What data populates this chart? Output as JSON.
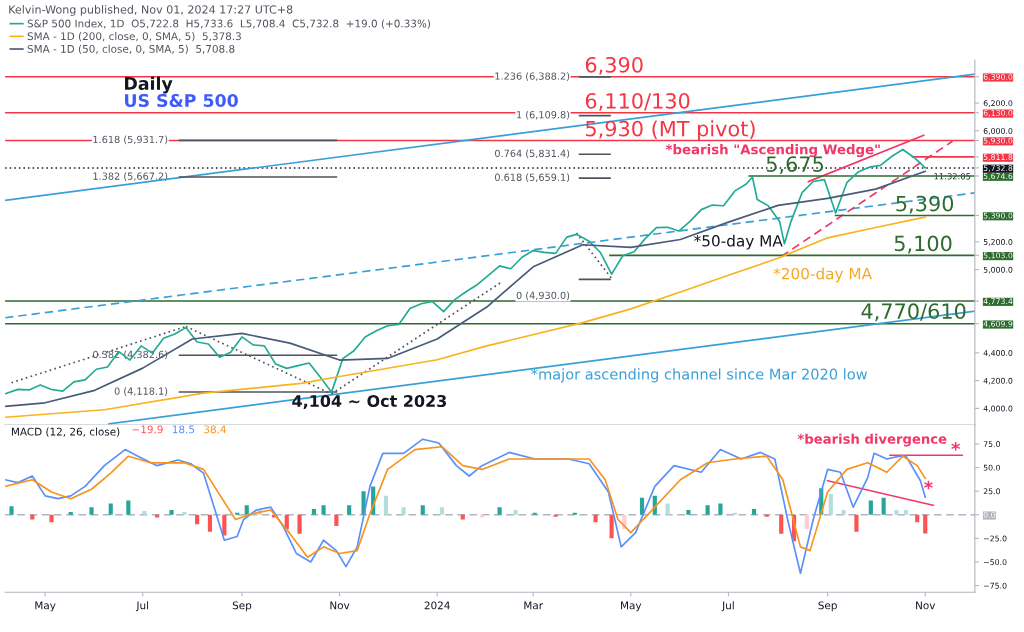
{
  "chart_data": [
    {
      "type": "line",
      "title": "Daily",
      "subtitle": "US S&P 500",
      "xlim": [
        "2023-04-06",
        "2024-12-02"
      ],
      "ylim": [
        3880,
        6510
      ],
      "yticks": [
        {
          "value": 4000,
          "label": "4,000.0"
        },
        {
          "value": 4200,
          "label": "4,200.0"
        },
        {
          "value": 4400,
          "label": "4,400.0"
        },
        {
          "value": 4609.9,
          "label": "4,609.9"
        },
        {
          "value": 4773.4,
          "label": "4,773.4"
        },
        {
          "value": 5000,
          "label": "5,000.0"
        },
        {
          "value": 5103,
          "label": "5,103.0"
        },
        {
          "value": 5200,
          "label": "5,200.0"
        },
        {
          "value": 5390,
          "label": "5,390.0"
        },
        {
          "value": 5674.6,
          "label": "5,674.6"
        },
        {
          "value": 5732.8,
          "label": "5,732.8"
        },
        {
          "value": 5811.8,
          "label": "5,811.8"
        },
        {
          "value": 5930,
          "label": "5,930.0"
        },
        {
          "value": 6000,
          "label": "6,000.0"
        },
        {
          "value": 6130,
          "label": "6,130.0"
        },
        {
          "value": 6200,
          "label": "6,200.0"
        },
        {
          "value": 6390,
          "label": "6,390.0"
        }
      ],
      "tick_labels": "y",
      "grid": false,
      "legend": "top left",
      "series": [
        {
          "name": "S&P 500 Index, 1D  O5,722.8  H5,733.6  L5,708.4  C5,732.8  +19.0 (+0.33%)",
          "color": "#22ab94",
          "x": [
            "2023-04-06",
            "2023-04-14",
            "2023-04-21",
            "2023-04-28",
            "2023-05-05",
            "2023-05-12",
            "2023-05-19",
            "2023-05-26",
            "2023-06-02",
            "2023-06-09",
            "2023-06-16",
            "2023-06-23",
            "2023-06-30",
            "2023-07-07",
            "2023-07-14",
            "2023-07-21",
            "2023-07-28",
            "2023-08-04",
            "2023-08-11",
            "2023-08-18",
            "2023-08-25",
            "2023-09-01",
            "2023-09-08",
            "2023-09-15",
            "2023-09-22",
            "2023-09-29",
            "2023-10-06",
            "2023-10-13",
            "2023-10-20",
            "2023-10-27",
            "2023-11-03",
            "2023-11-10",
            "2023-11-17",
            "2023-11-24",
            "2023-12-01",
            "2023-12-08",
            "2023-12-15",
            "2023-12-22",
            "2023-12-29",
            "2024-01-05",
            "2024-01-12",
            "2024-01-19",
            "2024-01-26",
            "2024-02-02",
            "2024-02-09",
            "2024-02-16",
            "2024-02-23",
            "2024-03-01",
            "2024-03-08",
            "2024-03-15",
            "2024-03-22",
            "2024-03-28",
            "2024-04-05",
            "2024-04-12",
            "2024-04-19",
            "2024-04-26",
            "2024-05-03",
            "2024-05-10",
            "2024-05-17",
            "2024-05-24",
            "2024-05-31",
            "2024-06-07",
            "2024-06-14",
            "2024-06-21",
            "2024-06-28",
            "2024-07-05",
            "2024-07-12",
            "2024-07-16",
            "2024-07-19",
            "2024-07-26",
            "2024-08-02",
            "2024-08-05",
            "2024-08-09",
            "2024-08-16",
            "2024-08-23",
            "2024-08-30",
            "2024-09-06",
            "2024-09-13",
            "2024-09-20",
            "2024-09-27",
            "2024-10-04",
            "2024-10-11",
            "2024-10-18",
            "2024-10-25",
            "2024-11-01"
          ],
          "values": [
            4105,
            4137,
            4133,
            4169,
            4136,
            4124,
            4191,
            4205,
            4282,
            4298,
            4409,
            4348,
            4450,
            4398,
            4505,
            4536,
            4582,
            4478,
            4464,
            4369,
            4405,
            4515,
            4457,
            4450,
            4320,
            4288,
            4308,
            4327,
            4224,
            4117,
            4358,
            4415,
            4514,
            4559,
            4595,
            4604,
            4719,
            4754,
            4770,
            4697,
            4784,
            4840,
            4891,
            4959,
            5027,
            5006,
            5089,
            5137,
            5124,
            5117,
            5234,
            5254,
            5204,
            5123,
            4967,
            5100,
            5128,
            5223,
            5303,
            5305,
            5278,
            5347,
            5432,
            5465,
            5460,
            5567,
            5615,
            5667,
            5505,
            5459,
            5346,
            5186,
            5344,
            5554,
            5635,
            5648,
            5408,
            5626,
            5703,
            5738,
            5751,
            5815,
            5865,
            5808,
            5732.8
          ]
        },
        {
          "name": "SMA - 1D (200, close, 0, SMA, 5)  5,378.3",
          "color": "#f9b31d",
          "x": [
            "2023-04-06",
            "2023-06-07",
            "2023-08-08",
            "2023-10-08",
            "2023-11-01",
            "2024-01-01",
            "2024-02-01",
            "2024-04-01",
            "2024-05-01",
            "2024-06-01",
            "2024-07-01",
            "2024-08-01",
            "2024-09-01",
            "2024-10-01",
            "2024-11-01"
          ],
          "values": [
            3936,
            3990,
            4110,
            4180,
            4230,
            4350,
            4450,
            4618,
            4717,
            4838,
            4959,
            5082,
            5229,
            5303,
            5378.3
          ]
        },
        {
          "name": "SMA - 1D (50, close, 0, SMA, 5)  5,708.8",
          "color": "#4a5a7a",
          "x": [
            "2023-04-06",
            "2023-05-01",
            "2023-06-01",
            "2023-07-01",
            "2023-08-01",
            "2023-09-01",
            "2023-10-01",
            "2023-11-01",
            "2023-12-01",
            "2024-01-01",
            "2024-02-01",
            "2024-03-01",
            "2024-04-01",
            "2024-05-01",
            "2024-06-01",
            "2024-07-01",
            "2024-08-01",
            "2024-09-01",
            "2024-10-01",
            "2024-11-01"
          ],
          "values": [
            4014,
            4040,
            4130,
            4290,
            4500,
            4540,
            4470,
            4348,
            4360,
            4500,
            4730,
            5020,
            5179,
            5160,
            5217,
            5342,
            5463,
            5513,
            5580,
            5708.8
          ]
        },
        {
          "color": "#3a9fd6",
          "x": [
            "2023-04-06",
            "2024-12-02"
          ],
          "values": [
            5499,
            6408
          ]
        },
        {
          "color": "#3a9fd6",
          "x": [
            "2023-06-10",
            "2024-12-02"
          ],
          "values": [
            3889,
            4700
          ]
        },
        {
          "color": "#3a9fd6",
          "line_style": "dashed",
          "x": [
            "2023-04-06",
            "2024-12-02"
          ],
          "values": [
            4653,
            5553
          ]
        },
        {
          "color": "#50535e",
          "line_style": "dotted",
          "x": [
            "2023-04-10",
            "2023-07-28"
          ],
          "values": [
            4185,
            4590
          ]
        },
        {
          "color": "#50535e",
          "line_style": "dotted",
          "x": [
            "2023-07-28",
            "2023-10-27"
          ],
          "values": [
            4590,
            4104
          ]
        },
        {
          "color": "#50535e",
          "line_style": "dotted",
          "x": [
            "2023-10-27",
            "2024-02-11"
          ],
          "values": [
            4104,
            4916
          ]
        },
        {
          "color": "#50535e",
          "line_style": "dotted",
          "x": [
            "2024-03-28",
            "2024-04-19"
          ],
          "values": [
            5264,
            4937
          ]
        },
        {
          "color": "#f23668",
          "x": [
            "2024-08-20",
            "2024-10-31"
          ],
          "values": [
            5634,
            5967
          ]
        },
        {
          "color": "#f23668",
          "line_style": "dashed",
          "x": [
            "2024-08-03",
            "2024-11-18"
          ],
          "values": [
            5094,
            5925
          ]
        },
        {
          "color": "#f23645",
          "x": [
            "2024-10-24",
            "2024-12-02"
          ],
          "values": [
            5811.8,
            5811.8
          ]
        },
        {
          "color": "#2e6b2f",
          "x": [
            "2024-07-14",
            "2024-12-02"
          ],
          "values": [
            5674.6,
            5674.6
          ]
        },
        {
          "color": "#2e6b2f",
          "x": [
            "2024-09-06",
            "2024-12-02"
          ],
          "values": [
            5390,
            5390
          ]
        },
        {
          "color": "#2e6b2f",
          "x": [
            "2024-04-18",
            "2024-12-02"
          ],
          "values": [
            5103,
            5103
          ]
        },
        {
          "color": "#50535e",
          "x": [
            "2024-03-30",
            "2024-04-18"
          ],
          "values": [
            6388.2,
            6388.2
          ]
        },
        {
          "color": "#50535e",
          "x": [
            "2024-03-30",
            "2024-04-18"
          ],
          "values": [
            6109.8,
            6109.8
          ]
        },
        {
          "color": "#50535e",
          "x": [
            "2024-03-30",
            "2024-04-18"
          ],
          "values": [
            5831.4,
            5831.4
          ]
        },
        {
          "color": "#50535e",
          "x": [
            "2024-03-30",
            "2024-04-18"
          ],
          "values": [
            5659.1,
            5659.1
          ]
        },
        {
          "color": "#50535e",
          "x": [
            "2024-03-30",
            "2024-04-18"
          ],
          "values": [
            4930.0,
            4930.0
          ]
        },
        {
          "color": "#50535e",
          "x": [
            "2023-07-24",
            "2023-10-30"
          ],
          "values": [
            5931.7,
            5931.7
          ]
        },
        {
          "color": "#50535e",
          "x": [
            "2023-07-24",
            "2023-10-30"
          ],
          "values": [
            5667.2,
            5667.2
          ]
        },
        {
          "color": "#50535e",
          "x": [
            "2023-07-24",
            "2023-10-30"
          ],
          "values": [
            4382.6,
            4382.6
          ]
        },
        {
          "color": "#50535e",
          "x": [
            "2023-07-24",
            "2023-10-30"
          ],
          "values": [
            4118.1,
            4118.1
          ]
        }
      ],
      "ref_lines": [
        {
          "axis": "y",
          "value": 6390,
          "color": "#f23645"
        },
        {
          "axis": "y",
          "value": 6130,
          "color": "#f23645"
        },
        {
          "axis": "y",
          "value": 5930,
          "color": "#f23645"
        },
        {
          "axis": "y",
          "value": 5732.8,
          "color": "#131722",
          "line_style": "dotted"
        },
        {
          "axis": "y",
          "value": 4773.4,
          "color": "#2e6b2f"
        },
        {
          "axis": "y",
          "value": 4609.9,
          "color": "#2e6b2f"
        }
      ],
      "annotations": [
        "Kelvin-Wong published, Nov 01, 2024 17:27 UTC+8",
        {
          "text": "6,390",
          "x": "2024-04-02",
          "y": 6390
        },
        {
          "text": "6,110/130",
          "x": "2024-04-02",
          "y": 6130
        },
        {
          "text": "5,930 (MT pivot)",
          "x": "2024-04-02",
          "y": 5930
        },
        "*bearish \"Ascending Wedge\"",
        {
          "text": "5,675",
          "x": "2024-07-24",
          "y": 5674.6
        },
        {
          "text": "5,390",
          "x": "2024-10-13",
          "y": 5390
        },
        {
          "text": "5,100",
          "x": "2024-10-12",
          "y": 5103
        },
        "4,770/610",
        "*50-day MA",
        "*200-day MA",
        "*major ascending channel since Mar 2020 low",
        {
          "text": "4,104 ~ Oct 2023",
          "x": "2023-10-02",
          "y": 4043
        },
        "1.236 (6,388.2)",
        "1 (6,109.8)",
        "0.764 (5,831.4)",
        "0.618 (5,659.1)",
        "0 (4,930.0)",
        "1.618 (5,931.7)",
        "1.382 (5,667.2)",
        "0.382 (4,382.6)",
        "0 (4,118.1)",
        "11:32:05"
      ]
    },
    {
      "type": "line",
      "title": "MACD (12, 26, close)",
      "xlim": [
        "2023-04-06",
        "2024-12-02"
      ],
      "xticks": [
        {
          "value": "2023-05-01",
          "label": "May"
        },
        {
          "value": "2023-07-01",
          "label": "Jul"
        },
        {
          "value": "2023-09-01",
          "label": "Sep"
        },
        {
          "value": "2023-11-01",
          "label": "Nov"
        },
        {
          "value": "2024-01-01",
          "label": "2024"
        },
        {
          "value": "2024-03-01",
          "label": "Mar"
        },
        {
          "value": "2024-05-01",
          "label": "May"
        },
        {
          "value": "2024-07-01",
          "label": "Jul"
        },
        {
          "value": "2024-09-01",
          "label": "Sep"
        },
        {
          "value": "2024-11-01",
          "label": "Nov"
        }
      ],
      "ylim": [
        -82,
        95
      ],
      "yticks": [
        {
          "value": -75,
          "label": "−75.0"
        },
        {
          "value": -50,
          "label": "−50.0"
        },
        {
          "value": -25,
          "label": "−25.0"
        },
        {
          "value": 0,
          "label": "0.0"
        },
        {
          "value": 25,
          "label": "25.0"
        },
        {
          "value": 50,
          "label": "50.0"
        },
        {
          "value": 75,
          "label": "75.0"
        }
      ],
      "grid": false,
      "legend": "top left",
      "series": [
        {
          "type": "bar",
          "name": "−19.9",
          "color": "#ff5252",
          "x": [
            "2023-04-10",
            "2023-04-23",
            "2023-05-05",
            "2023-05-17",
            "2023-05-30",
            "2023-06-11",
            "2023-06-22",
            "2023-07-02",
            "2023-07-10",
            "2023-07-19",
            "2023-07-27",
            "2023-08-04",
            "2023-08-12",
            "2023-08-21",
            "2023-08-29",
            "2023-09-04",
            "2023-09-12",
            "2023-09-21",
            "2023-09-29",
            "2023-10-07",
            "2023-10-16",
            "2023-10-22",
            "2023-10-30",
            "2023-11-07",
            "2023-11-16",
            "2023-11-22",
            "2023-11-30",
            "2023-12-11",
            "2023-12-23",
            "2024-01-04",
            "2024-01-17",
            "2024-01-29",
            "2024-02-09",
            "2024-02-19",
            "2024-03-02",
            "2024-03-15",
            "2024-03-27",
            "2024-04-09",
            "2024-04-19",
            "2024-04-27",
            "2024-05-08",
            "2024-05-16",
            "2024-05-24",
            "2024-06-06",
            "2024-06-18",
            "2024-06-26",
            "2024-07-05",
            "2024-07-17",
            "2024-07-25",
            "2024-08-03",
            "2024-08-11",
            "2024-08-19",
            "2024-08-28",
            "2024-09-03",
            "2024-09-11",
            "2024-09-19",
            "2024-09-28",
            "2024-10-06",
            "2024-10-14",
            "2024-10-20",
            "2024-10-27",
            "2024-11-01"
          ],
          "values": [
            9,
            -5,
            -8,
            3,
            8,
            12,
            15,
            4,
            -3,
            5,
            3,
            -10,
            -18,
            -22,
            2,
            10,
            6,
            -3,
            -15,
            -20,
            6,
            10,
            -12,
            10,
            25,
            30,
            20,
            8,
            10,
            8,
            -5,
            -3,
            8,
            5,
            2,
            -2,
            2,
            -8,
            -25,
            -15,
            18,
            20,
            12,
            5,
            10,
            12,
            2,
            6,
            -2,
            -20,
            -28,
            -15,
            28,
            22,
            5,
            -18,
            15,
            18,
            5,
            5,
            -8,
            -19.9
          ],
          "colors": [
            "#26a69a",
            "#ff5252",
            "#ff5252",
            "#26a69a",
            "#26a69a",
            "#26a69a",
            "#26a69a",
            "#b2dfdb",
            "#ff5252",
            "#26a69a",
            "#b2dfdb",
            "#ff5252",
            "#ff5252",
            "#ff5252",
            "#26a69a",
            "#26a69a",
            "#b2dfdb",
            "#ff5252",
            "#ff5252",
            "#ff5252",
            "#26a69a",
            "#26a69a",
            "#ff5252",
            "#26a69a",
            "#26a69a",
            "#26a69a",
            "#b2dfdb",
            "#b2dfdb",
            "#26a69a",
            "#b2dfdb",
            "#ff5252",
            "#ffcdd2",
            "#26a69a",
            "#b2dfdb",
            "#26a69a",
            "#ff5252",
            "#26a69a",
            "#ff5252",
            "#ff5252",
            "#ffcdd2",
            "#26a69a",
            "#26a69a",
            "#b2dfdb",
            "#26a69a",
            "#26a69a",
            "#26a69a",
            "#b2dfdb",
            "#26a69a",
            "#ff5252",
            "#ff5252",
            "#ff5252",
            "#ffcdd2",
            "#26a69a",
            "#b2dfdb",
            "#b2dfdb",
            "#ff5252",
            "#26a69a",
            "#26a69a",
            "#b2dfdb",
            "#b2dfdb",
            "#ff5252",
            "#ff5252"
          ]
        },
        {
          "name": "18.5",
          "color": "#5b8ff9",
          "x": [
            "2023-04-06",
            "2023-04-14",
            "2023-04-23",
            "2023-05-01",
            "2023-05-09",
            "2023-05-17",
            "2023-05-26",
            "2023-06-07",
            "2023-06-20",
            "2023-06-28",
            "2023-07-10",
            "2023-07-23",
            "2023-07-31",
            "2023-08-08",
            "2023-08-21",
            "2023-08-29",
            "2023-09-02",
            "2023-09-10",
            "2023-09-19",
            "2023-09-27",
            "2023-10-05",
            "2023-10-14",
            "2023-10-22",
            "2023-10-30",
            "2023-11-05",
            "2023-11-12",
            "2023-11-20",
            "2023-11-28",
            "2023-12-11",
            "2023-12-23",
            "2024-01-02",
            "2024-01-13",
            "2024-01-21",
            "2024-01-29",
            "2024-02-15",
            "2024-03-02",
            "2024-03-23",
            "2024-04-05",
            "2024-04-17",
            "2024-04-25",
            "2024-05-04",
            "2024-05-16",
            "2024-05-28",
            "2024-06-14",
            "2024-06-26",
            "2024-07-09",
            "2024-07-21",
            "2024-07-30",
            "2024-08-07",
            "2024-08-15",
            "2024-08-23",
            "2024-09-01",
            "2024-09-09",
            "2024-09-17",
            "2024-09-26",
            "2024-09-30",
            "2024-10-08",
            "2024-10-16",
            "2024-10-20",
            "2024-10-29",
            "2024-11-01"
          ],
          "values": [
            37,
            34,
            41,
            20,
            17,
            20,
            30,
            52,
            69,
            62,
            52,
            58,
            54,
            44,
            -27,
            -23,
            -5,
            5,
            8,
            -13,
            -41,
            -50,
            -27,
            -38,
            -55,
            -34,
            30,
            65,
            65,
            80,
            76,
            52,
            41,
            52,
            66,
            59,
            59,
            54,
            24,
            -34,
            -19,
            30,
            52,
            45,
            69,
            59,
            66,
            59,
            -5,
            -62,
            -5,
            48,
            45,
            8,
            39,
            65,
            59,
            62,
            62,
            36,
            18.5
          ]
        },
        {
          "name": "38.4",
          "color": "#f7931e",
          "x": [
            "2023-04-06",
            "2023-04-23",
            "2023-05-05",
            "2023-05-17",
            "2023-05-30",
            "2023-06-11",
            "2023-06-22",
            "2023-07-06",
            "2023-07-27",
            "2023-08-08",
            "2023-08-17",
            "2023-08-28",
            "2023-09-07",
            "2023-09-19",
            "2023-10-01",
            "2023-10-12",
            "2023-10-22",
            "2023-11-01",
            "2023-11-12",
            "2023-11-20",
            "2023-12-01",
            "2023-12-18",
            "2024-01-04",
            "2024-01-17",
            "2024-01-29",
            "2024-02-15",
            "2024-03-11",
            "2024-04-05",
            "2024-04-15",
            "2024-04-23",
            "2024-05-01",
            "2024-05-16",
            "2024-06-01",
            "2024-06-18",
            "2024-07-05",
            "2024-07-25",
            "2024-08-04",
            "2024-08-15",
            "2024-08-21",
            "2024-09-01",
            "2024-09-13",
            "2024-09-26",
            "2024-10-08",
            "2024-10-18",
            "2024-10-27",
            "2024-11-01"
          ],
          "values": [
            30,
            37,
            24,
            17,
            27,
            44,
            62,
            55,
            55,
            48,
            24,
            -5,
            1,
            5,
            -20,
            -45,
            -34,
            -41,
            -38,
            1,
            48,
            69,
            72,
            52,
            48,
            59,
            59,
            59,
            37,
            -5,
            -19,
            8,
            37,
            55,
            59,
            62,
            37,
            -34,
            -38,
            24,
            48,
            55,
            45,
            62,
            52,
            38.4
          ]
        },
        {
          "color": "#f23668",
          "x": [
            "2024-09-01",
            "2024-11-06"
          ],
          "values": [
            36,
            10
          ]
        },
        {
          "color": "#f23668",
          "x": [
            "2024-10-10",
            "2024-11-24"
          ],
          "values": [
            63,
            63
          ]
        }
      ],
      "ref_lines": [
        {
          "axis": "y",
          "value": 0,
          "color": "#b2b5be",
          "line_style": "dashed"
        }
      ],
      "annotations": [
        "*bearish divergence",
        {
          "text": "*",
          "x": "2024-11-20",
          "y": 68
        },
        {
          "text": "*",
          "x": "2024-11-03",
          "y": 27
        }
      ]
    }
  ]
}
